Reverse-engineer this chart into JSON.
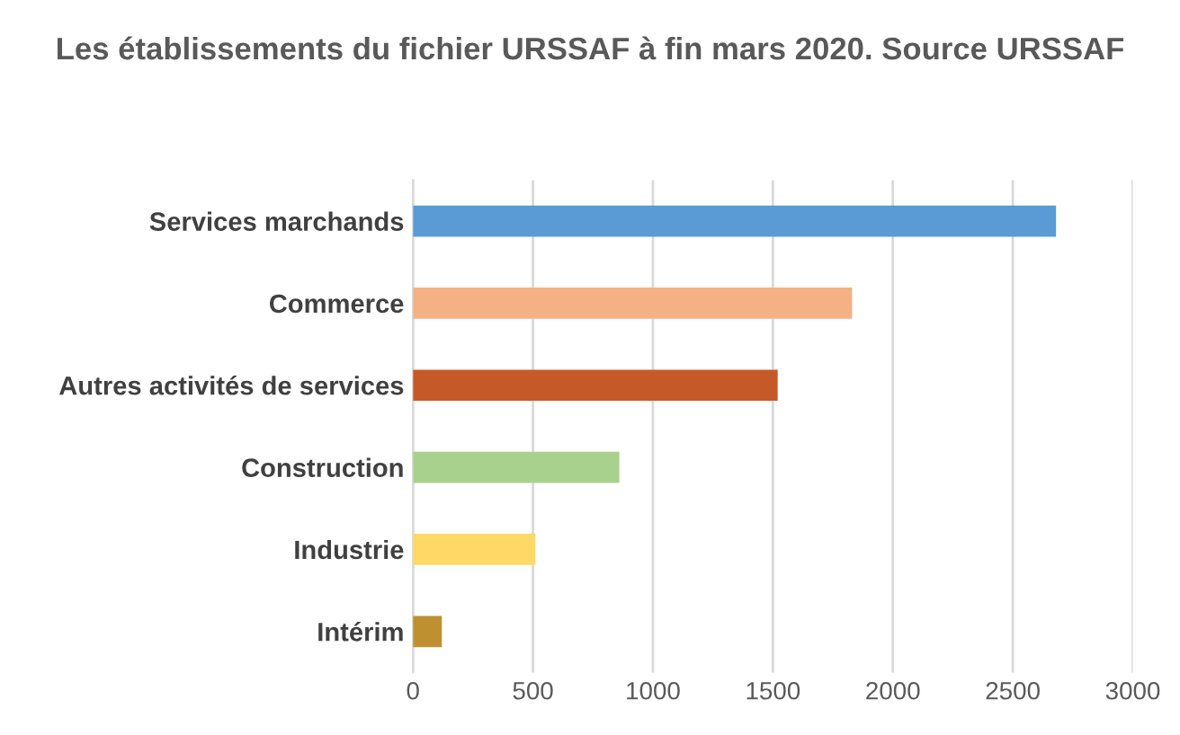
{
  "chart_data": {
    "type": "bar",
    "orientation": "horizontal",
    "title": "Les établissements du fichier URSSAF à fin mars 2020. Source URSSAF",
    "categories": [
      "Services marchands",
      "Commerce",
      "Autres activités de services",
      "Construction",
      "Industrie",
      "Intérim"
    ],
    "values": [
      2680,
      1830,
      1520,
      860,
      510,
      120
    ],
    "colors": [
      "#5b9bd5",
      "#f4b183",
      "#c55a28",
      "#a9d18e",
      "#ffd966",
      "#bf9030"
    ],
    "xlim": [
      0,
      3000
    ],
    "xticks": [
      0,
      500,
      1000,
      1500,
      2000,
      2500,
      3000
    ],
    "grid": "x"
  }
}
